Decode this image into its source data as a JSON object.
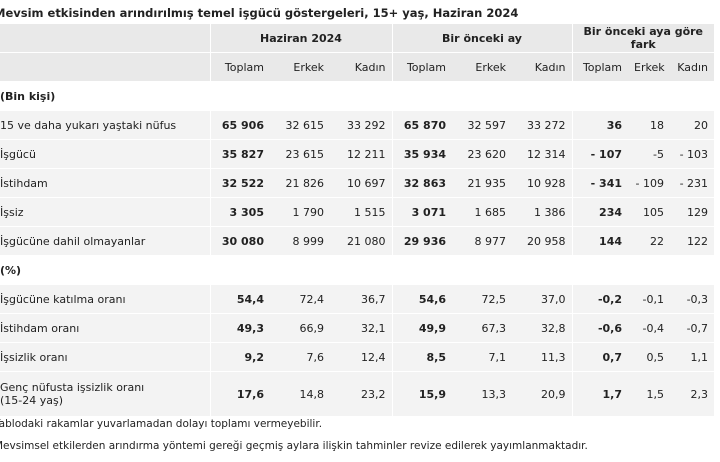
{
  "title": "Mevsim etkisinden arındırılmış temel işgücü göstergeleri, 15+ yaş, Haziran 2024",
  "table": {
    "group_headers": [
      "Haziran 2024",
      "Bir önceki ay",
      "Bir önceki aya göre fark"
    ],
    "sub_headers": [
      "Toplam",
      "Erkek",
      "Kadın",
      "Toplam",
      "Erkek",
      "Kadın",
      "Toplam",
      "Erkek",
      "Kadın"
    ],
    "rows": [
      {
        "label": "(Bin kişi)"
      },
      {
        "label": "15 ve daha yukarı yaştaki nüfus",
        "cells": [
          "65 906",
          "32 615",
          "33 292",
          "65 870",
          "32 597",
          "33 272",
          "36",
          "18",
          "20"
        ]
      },
      {
        "label": "İşgücü",
        "cells": [
          "35 827",
          "23 615",
          "12 211",
          "35 934",
          "23 620",
          "12 314",
          "- 107",
          "-5",
          "- 103"
        ]
      },
      {
        "label": "İstihdam",
        "cells": [
          "32 522",
          "21 826",
          "10 697",
          "32 863",
          "21 935",
          "10 928",
          "- 341",
          "- 109",
          "- 231"
        ]
      },
      {
        "label": "İşsiz",
        "cells": [
          "3 305",
          "1 790",
          "1 515",
          "3 071",
          "1 685",
          "1 386",
          "234",
          "105",
          "129"
        ]
      },
      {
        "label": "İşgücüne dahil olmayanlar",
        "cells": [
          "30 080",
          "8 999",
          "21 080",
          "29 936",
          "8 977",
          "20 958",
          "144",
          "22",
          "122"
        ]
      },
      {
        "label": "(%)"
      },
      {
        "label": "İşgücüne katılma oranı",
        "cells": [
          "54,4",
          "72,4",
          "36,7",
          "54,6",
          "72,5",
          "37,0",
          "-0,2",
          "-0,1",
          "-0,3"
        ]
      },
      {
        "label": "İstihdam oranı",
        "cells": [
          "49,3",
          "66,9",
          "32,1",
          "49,9",
          "67,3",
          "32,8",
          "-0,6",
          "-0,4",
          "-0,7"
        ]
      },
      {
        "label": "İşsizlik oranı",
        "cells": [
          "9,2",
          "7,6",
          "12,4",
          "8,5",
          "7,1",
          "11,3",
          "0,7",
          "0,5",
          "1,1"
        ]
      },
      {
        "label": "Genç nüfusta işsizlik oranı\n(15-24 yaş)",
        "cells": [
          "17,6",
          "14,8",
          "23,2",
          "15,9",
          "13,3",
          "20,9",
          "1,7",
          "1,5",
          "2,3"
        ]
      }
    ]
  },
  "notes": [
    "Tablodaki rakamlar yuvarlamadan dolayı toplamı vermeyebilir.",
    "Mevsimsel etkilerden arındırma yöntemi gereği geçmiş aylara ilişkin tahminler revize edilerek yayımlanmaktadır."
  ]
}
